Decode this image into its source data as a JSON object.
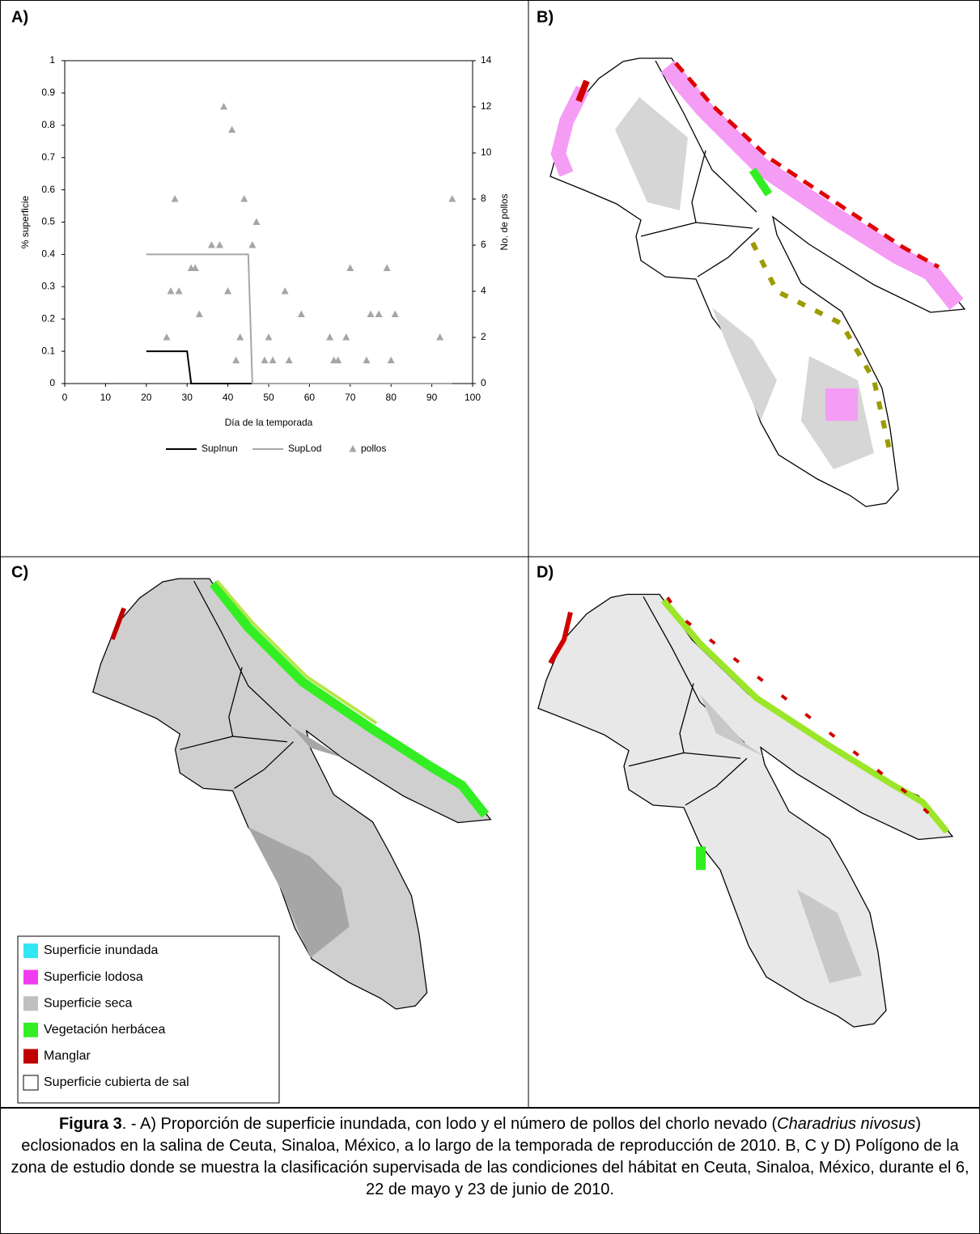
{
  "panels": {
    "a": "A)",
    "b": "B)",
    "c": "C)",
    "d": "D)"
  },
  "chart_data": {
    "type": "line",
    "x_label": "Día de la temporada",
    "y_label": "% superficie",
    "y2_label": "No. de pollos",
    "xlim": [
      0,
      100
    ],
    "xticks": [
      0,
      10,
      20,
      30,
      40,
      50,
      60,
      70,
      80,
      90,
      100
    ],
    "ylim": [
      0,
      1
    ],
    "yticks": [
      0,
      0.1,
      0.2,
      0.3,
      0.4,
      0.5,
      0.6,
      0.7,
      0.8,
      0.9,
      1
    ],
    "y2lim": [
      0,
      14
    ],
    "y2ticks": [
      0,
      2,
      4,
      6,
      8,
      10,
      12,
      14
    ],
    "series": [
      {
        "name": "SupInun",
        "type": "line",
        "color": "#000000",
        "x": [
          20,
          30,
          31,
          95
        ],
        "values": [
          0.1,
          0.1,
          0,
          0
        ]
      },
      {
        "name": "SupLod",
        "type": "line",
        "color": "#a6a6a6",
        "x": [
          20,
          45,
          46,
          95
        ],
        "values": [
          0.4,
          0.4,
          0,
          0
        ]
      },
      {
        "name": "pollos",
        "type": "scatter",
        "axis": "y2",
        "color": "#a6a6a6",
        "x": [
          25,
          26,
          27,
          28,
          31,
          32,
          33,
          36,
          38,
          39,
          40,
          41,
          42,
          43,
          44,
          46,
          47,
          49,
          50,
          51,
          54,
          55,
          58,
          65,
          66,
          67,
          69,
          70,
          74,
          75,
          77,
          79,
          80,
          81,
          92,
          95
        ],
        "values": [
          2,
          4,
          8,
          4,
          5,
          5,
          3,
          6,
          6,
          12,
          4,
          11,
          1,
          2,
          8,
          6,
          7,
          1,
          2,
          1,
          4,
          1,
          3,
          2,
          1,
          1,
          2,
          5,
          1,
          3,
          3,
          5,
          1,
          3,
          2,
          8
        ]
      }
    ]
  },
  "map_legend": [
    {
      "label": "Superficie inundada",
      "color": "#33e6f5"
    },
    {
      "label": "Superficie lodosa",
      "color": "#f03cf0"
    },
    {
      "label": "Superficie seca",
      "color": "#c0c0c0"
    },
    {
      "label": "Vegetación herbácea",
      "color": "#33ee22"
    },
    {
      "label": "Manglar",
      "color": "#c00000"
    },
    {
      "label": "Superficie cubierta de sal",
      "color": "#ffffff"
    }
  ],
  "caption": {
    "label": "Figura 3",
    "text": ". - A) Proporción de superficie inundada, con lodo y el número de pollos del chorlo nevado (",
    "species": "Charadrius nivosus",
    "text_end": ") eclosionados en la salina de Ceuta, Sinaloa, México, a lo largo de la temporada de reproducción de 2010. B, C y D) Polígono de la zona de estudio donde se muestra la clasificación supervisada de las condiciones del hábitat en Ceuta, Sinaloa, México, durante el 6, 22 de mayo y 23 de junio de 2010."
  }
}
